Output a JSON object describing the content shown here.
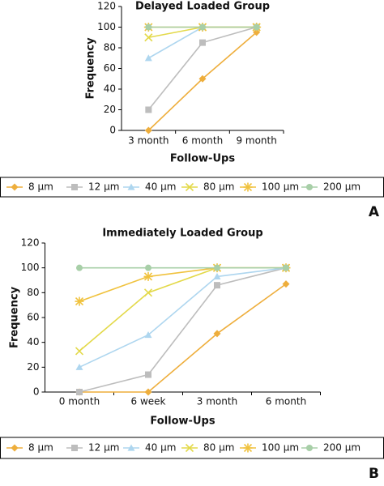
{
  "chart_data": [
    {
      "type": "line",
      "title": "Delayed Loaded Group",
      "label": "A",
      "x_label": "Follow-Ups",
      "y_label": "Frequency",
      "categories": [
        "3 month",
        "6 month",
        "9 month"
      ],
      "ylim": [
        0,
        120
      ],
      "yticks": [
        0,
        20,
        40,
        60,
        80,
        100,
        120
      ],
      "series": [
        {
          "name": "8 μm",
          "color": "#eeae3c",
          "marker": "diamond",
          "values": [
            0,
            50,
            95
          ]
        },
        {
          "name": "12 μm",
          "color": "#bdbdbd",
          "marker": "square",
          "values": [
            20,
            85,
            100
          ]
        },
        {
          "name": "40 μm",
          "color": "#aed6ef",
          "marker": "triangle",
          "values": [
            70,
            100,
            100
          ]
        },
        {
          "name": "80 μm",
          "color": "#e3d94a",
          "marker": "x",
          "values": [
            90,
            100,
            100
          ]
        },
        {
          "name": "100 μm",
          "color": "#f0c23e",
          "marker": "asterisk",
          "values": [
            100,
            100,
            100
          ]
        },
        {
          "name": "200 μm",
          "color": "#a8cfa8",
          "marker": "circle",
          "values": [
            100,
            100,
            100
          ]
        }
      ]
    },
    {
      "type": "line",
      "title": "Immediately Loaded Group",
      "label": "B",
      "x_label": "Follow-Ups",
      "y_label": "Frequency",
      "categories": [
        "0 month",
        "6 week",
        "3 month",
        "6 month"
      ],
      "ylim": [
        0,
        120
      ],
      "yticks": [
        0,
        20,
        40,
        60,
        80,
        100,
        120
      ],
      "series": [
        {
          "name": "8 μm",
          "color": "#eeae3c",
          "marker": "diamond",
          "values": [
            0,
            0,
            47,
            87
          ]
        },
        {
          "name": "12 μm",
          "color": "#bdbdbd",
          "marker": "square",
          "values": [
            0,
            14,
            86,
            100
          ]
        },
        {
          "name": "40 μm",
          "color": "#aed6ef",
          "marker": "triangle",
          "values": [
            20,
            46,
            93,
            100
          ]
        },
        {
          "name": "80 μm",
          "color": "#e3d94a",
          "marker": "x",
          "values": [
            33,
            80,
            100,
            100
          ]
        },
        {
          "name": "100 μm",
          "color": "#f0c23e",
          "marker": "asterisk",
          "values": [
            73,
            93,
            100,
            100
          ]
        },
        {
          "name": "200 μm",
          "color": "#a8cfa8",
          "marker": "circle",
          "values": [
            100,
            100,
            100,
            100
          ]
        }
      ]
    }
  ]
}
